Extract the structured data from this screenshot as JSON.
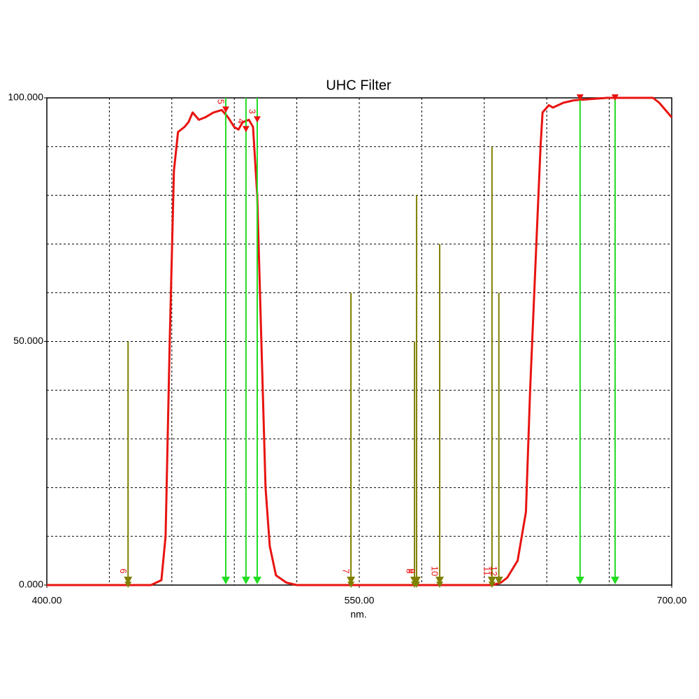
{
  "chart_data": {
    "type": "line",
    "title": "UHC Filter",
    "x_label": "nm.",
    "xlim": [
      400,
      700
    ],
    "ylim": [
      0,
      100
    ],
    "xticks": [
      {
        "value": 400,
        "label": "400.00"
      },
      {
        "value": 550,
        "label": "550.00"
      },
      {
        "value": 700,
        "label": "700.00"
      }
    ],
    "yticks": [
      {
        "value": 0,
        "label": "0.000"
      },
      {
        "value": 50,
        "label": "50.000"
      },
      {
        "value": 100,
        "label": "100.000"
      }
    ],
    "x_grid": [
      430,
      460,
      490,
      520,
      550,
      580,
      610,
      640,
      670
    ],
    "y_grid": [
      10,
      20,
      30,
      40,
      50,
      60,
      70,
      80,
      90
    ],
    "grid": true,
    "series": [
      {
        "color": "#e8130f",
        "x": [
          400,
          450,
          455,
          457,
          459,
          461,
          463,
          466,
          468,
          470,
          473,
          476,
          480,
          484,
          487,
          490,
          492,
          494,
          497,
          499,
          501,
          503,
          505,
          507,
          510,
          515,
          520,
          525,
          580,
          614,
          618,
          621,
          626,
          630,
          632,
          635,
          637,
          638,
          641,
          643,
          648,
          653,
          669,
          691,
          694,
          700
        ],
        "values": [
          0,
          0,
          1,
          10,
          50,
          85,
          93,
          94,
          95,
          97,
          95.5,
          96,
          97,
          97.5,
          96,
          94,
          93.5,
          95,
          95.5,
          94,
          80,
          50,
          20,
          8,
          2,
          0.5,
          0,
          0,
          0,
          0,
          0.5,
          1.5,
          5,
          15,
          40,
          70,
          90,
          97,
          98.5,
          98,
          99,
          99.5,
          100,
          100,
          99,
          96
        ]
      }
    ],
    "markers": [
      {
        "label": "6",
        "color": "#808000",
        "x": 439,
        "top": 50,
        "tip": 0
      },
      {
        "label": "7",
        "color": "#808000",
        "x": 546,
        "top": 60,
        "tip": 0
      },
      {
        "label": "8",
        "color": "#808000",
        "x": 576.5,
        "top": 50,
        "tip": 0
      },
      {
        "label": "9",
        "color": "#808000",
        "x": 577.5,
        "top": 80,
        "tip": 0
      },
      {
        "label": "10",
        "color": "#808000",
        "x": 588.6,
        "top": 70,
        "tip": 0
      },
      {
        "label": "11",
        "color": "#808000",
        "x": 613.7,
        "top": 90,
        "tip": 0
      },
      {
        "label": "12",
        "color": "#808000",
        "x": 617,
        "top": 60,
        "tip": 1
      },
      {
        "label": "5",
        "color": "#22dd22",
        "x": 485.9,
        "top": 100,
        "tip": 97.5
      },
      {
        "label": "4",
        "color": "#22dd22",
        "x": 495.6,
        "top": 100,
        "tip": 93.5
      },
      {
        "label": "3",
        "color": "#22dd22",
        "x": 501,
        "top": 100,
        "tip": 95.5
      },
      {
        "label": null,
        "color": "#22dd22",
        "x": 656,
        "top": 100,
        "tip": 100
      },
      {
        "label": null,
        "color": "#22dd22",
        "x": 672.8,
        "top": 100,
        "tip": 100
      }
    ]
  }
}
